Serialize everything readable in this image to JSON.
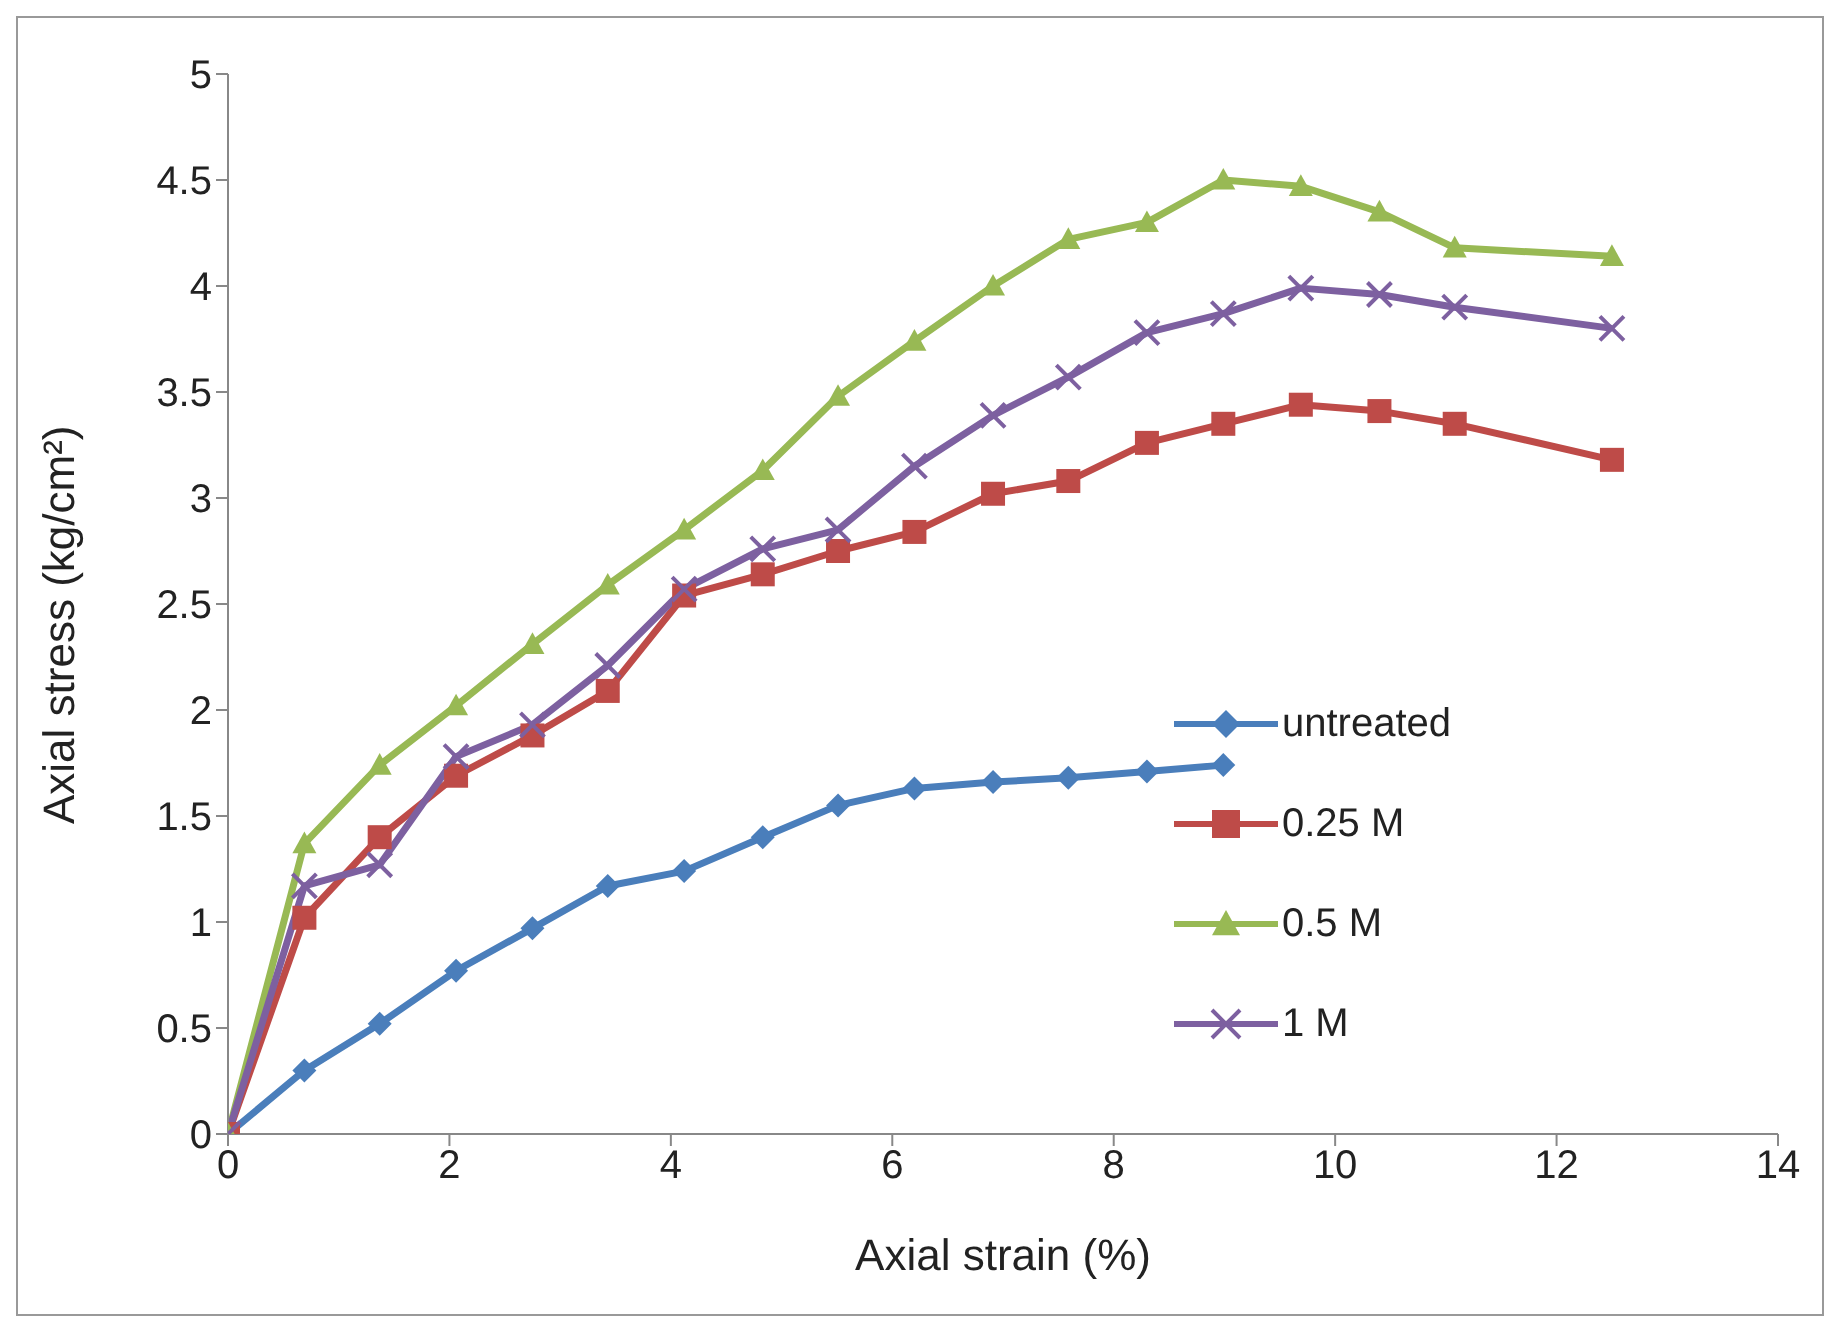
{
  "chart_data": {
    "type": "line",
    "xlabel": "Axial strain (%)",
    "ylabel": "Axial stress (kg/cm²)",
    "xlim": [
      0,
      14
    ],
    "xticks": [
      0,
      2,
      4,
      6,
      8,
      10,
      12,
      14
    ],
    "ylim": [
      0,
      5
    ],
    "yticks": [
      0,
      0.5,
      1,
      1.5,
      2,
      2.5,
      3,
      3.5,
      4,
      4.5,
      5
    ],
    "grid": false,
    "legend": "bottom right",
    "line_style": "solid",
    "series": [
      {
        "name": "untreated",
        "color": "#4a7ebb",
        "marker": "diamond",
        "x": [
          0,
          0.69,
          1.37,
          2.06,
          2.75,
          3.43,
          4.12,
          4.83,
          5.51,
          6.2,
          6.91,
          7.59,
          8.3,
          8.99
        ],
        "values": [
          0,
          0.3,
          0.52,
          0.77,
          0.97,
          1.17,
          1.24,
          1.4,
          1.55,
          1.63,
          1.66,
          1.68,
          1.71,
          1.74
        ]
      },
      {
        "name": "0.25 M",
        "color": "#be4b48",
        "marker": "square",
        "x": [
          0,
          0.69,
          1.37,
          2.06,
          2.75,
          3.43,
          4.12,
          4.83,
          5.51,
          6.2,
          6.91,
          7.59,
          8.3,
          8.99,
          9.69,
          10.4,
          11.08,
          12.5
        ],
        "values": [
          0,
          1.02,
          1.4,
          1.69,
          1.88,
          2.09,
          2.54,
          2.64,
          2.75,
          2.84,
          3.02,
          3.08,
          3.26,
          3.35,
          3.44,
          3.41,
          3.35,
          3.18
        ]
      },
      {
        "name": "0.5 M",
        "color": "#98b954",
        "marker": "triangle",
        "x": [
          0,
          0.69,
          1.37,
          2.06,
          2.75,
          3.43,
          4.12,
          4.83,
          5.51,
          6.2,
          6.91,
          7.59,
          8.3,
          8.99,
          9.69,
          10.4,
          11.08,
          12.5
        ],
        "values": [
          0,
          1.37,
          1.74,
          2.02,
          2.31,
          2.59,
          2.85,
          3.13,
          3.48,
          3.74,
          4.0,
          4.22,
          4.3,
          4.5,
          4.47,
          4.35,
          4.18,
          4.14
        ]
      },
      {
        "name": "1 M",
        "color": "#7d60a0",
        "marker": "cross",
        "x": [
          0,
          0.69,
          1.37,
          2.06,
          2.75,
          3.43,
          4.12,
          4.83,
          5.51,
          6.2,
          6.91,
          7.59,
          8.3,
          8.99,
          9.69,
          10.4,
          11.08,
          12.5
        ],
        "values": [
          0,
          1.17,
          1.27,
          1.78,
          1.93,
          2.21,
          2.57,
          2.76,
          2.85,
          3.15,
          3.39,
          3.57,
          3.78,
          3.87,
          3.99,
          3.96,
          3.9,
          3.8
        ]
      }
    ]
  }
}
